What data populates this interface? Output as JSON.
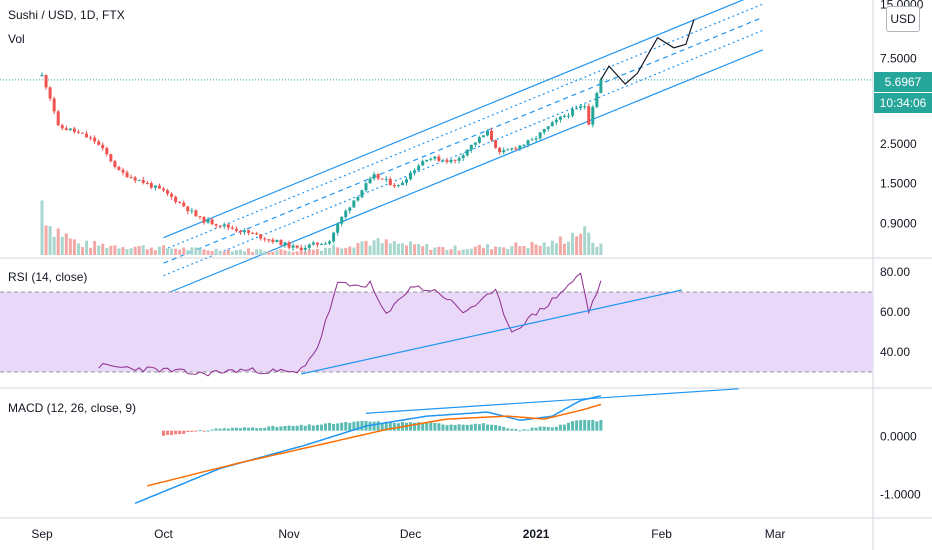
{
  "header": {
    "symbol_title": "Sushi / USD, 1D, FTX",
    "volume_label": "Vol",
    "currency_button": "USD"
  },
  "price_tags": {
    "last_price": "5.6967",
    "countdown": "10:34:06",
    "last_price_color": "#26a69a",
    "countdown_color": "#26a69a"
  },
  "panes": {
    "rsi_title": "RSI (14, close)",
    "macd_title": "MACD (12, 26, close, 9)"
  },
  "colors": {
    "up": "#26a69a",
    "down": "#ef5350",
    "up_volume": "#a7d6cf",
    "down_volume": "#f3a8a6",
    "rsi_line": "#8e2c8e",
    "rsi_band": "#e9d8f7",
    "trendline": "#2196f3",
    "macd_line": "#2196f3",
    "signal_line": "#ff6d00",
    "axis_text": "#131722"
  },
  "chart_data": [
    {
      "type": "candlestick",
      "title": "Sushi / USD, 1D, FTX",
      "scale": "log",
      "x_tick_labels": [
        "Sep",
        "Oct",
        "Nov",
        "Dec",
        "2021",
        "Feb",
        "Mar"
      ],
      "x_tick_dates": [
        "2020-09-01",
        "2020-10-01",
        "2020-11-01",
        "2020-12-01",
        "2021-01-01",
        "2021-02-01",
        "2021-03-01"
      ],
      "y_tick_labels": [
        "15.0000",
        "7.5000",
        "2.5000",
        "1.5000",
        "0.9000"
      ],
      "ylim": [
        0.6,
        15.5
      ],
      "current_price": 5.6967,
      "trend_channel": "ascending, upper band, lower band and median lines",
      "projection": "hand-drawn path above the last candle",
      "anchors": [
        {
          "date": "2020-09-01",
          "close": 6.0
        },
        {
          "date": "2020-09-02",
          "close": 5.3
        },
        {
          "date": "2020-09-05",
          "close": 3.1
        },
        {
          "date": "2020-09-08",
          "close": 3.0
        },
        {
          "date": "2020-09-14",
          "close": 2.6
        },
        {
          "date": "2020-09-20",
          "close": 1.75
        },
        {
          "date": "2020-10-01",
          "close": 1.35
        },
        {
          "date": "2020-10-10",
          "close": 0.95
        },
        {
          "date": "2020-10-20",
          "close": 0.82
        },
        {
          "date": "2020-11-03",
          "close": 0.65
        },
        {
          "date": "2020-11-11",
          "close": 0.72
        },
        {
          "date": "2020-11-18",
          "close": 1.3
        },
        {
          "date": "2020-11-22",
          "close": 1.65
        },
        {
          "date": "2020-11-28",
          "close": 1.45
        },
        {
          "date": "2020-12-05",
          "close": 2.1
        },
        {
          "date": "2020-12-12",
          "close": 2.0
        },
        {
          "date": "2020-12-20",
          "close": 2.9
        },
        {
          "date": "2020-12-23",
          "close": 2.2
        },
        {
          "date": "2020-12-31",
          "close": 2.6
        },
        {
          "date": "2021-01-08",
          "close": 3.6
        },
        {
          "date": "2021-01-13",
          "close": 4.1
        },
        {
          "date": "2021-01-14",
          "close": 3.3
        },
        {
          "date": "2021-01-17",
          "close": 5.6967
        }
      ]
    },
    {
      "type": "bar",
      "title": "Vol",
      "anchors": [
        {
          "date": "2020-09-01",
          "value": 1.0
        },
        {
          "date": "2020-09-03",
          "value": 0.55
        },
        {
          "date": "2020-09-10",
          "value": 0.2
        },
        {
          "date": "2020-10-10",
          "value": 0.1
        },
        {
          "date": "2020-11-05",
          "value": 0.08
        },
        {
          "date": "2020-11-20",
          "value": 0.25
        },
        {
          "date": "2020-12-10",
          "value": 0.12
        },
        {
          "date": "2021-01-05",
          "value": 0.2
        },
        {
          "date": "2021-01-12",
          "value": 0.45
        },
        {
          "date": "2021-01-17",
          "value": 0.15
        }
      ]
    },
    {
      "type": "line",
      "title": "RSI (14, close)",
      "y_tick_labels": [
        "80.00",
        "60.00",
        "40.00"
      ],
      "ylim": [
        25,
        85
      ],
      "bands": [
        30,
        70
      ],
      "anchors": [
        {
          "date": "2020-09-15",
          "value": 33
        },
        {
          "date": "2020-10-01",
          "value": 31
        },
        {
          "date": "2020-10-10",
          "value": 29
        },
        {
          "date": "2020-10-20",
          "value": 31
        },
        {
          "date": "2020-11-01",
          "value": 30
        },
        {
          "date": "2020-11-03",
          "value": 29
        },
        {
          "date": "2020-11-08",
          "value": 42
        },
        {
          "date": "2020-11-13",
          "value": 74
        },
        {
          "date": "2020-11-17",
          "value": 73
        },
        {
          "date": "2020-11-21",
          "value": 74
        },
        {
          "date": "2020-11-25",
          "value": 58
        },
        {
          "date": "2020-12-01",
          "value": 73
        },
        {
          "date": "2020-12-08",
          "value": 70
        },
        {
          "date": "2020-12-14",
          "value": 60
        },
        {
          "date": "2020-12-22",
          "value": 70
        },
        {
          "date": "2020-12-26",
          "value": 50
        },
        {
          "date": "2021-01-04",
          "value": 64
        },
        {
          "date": "2021-01-12",
          "value": 79
        },
        {
          "date": "2021-01-14",
          "value": 60
        },
        {
          "date": "2021-01-17",
          "value": 75
        }
      ]
    },
    {
      "type": "line",
      "title": "MACD (12, 26, close, 9)",
      "y_tick_labels": [
        "0.0000",
        "-1.0000"
      ],
      "ylim": [
        -1.3,
        0.8
      ],
      "series": [
        {
          "anchors": [
            {
              "date": "2020-09-24",
              "value": -1.15
            },
            {
              "date": "2020-10-15",
              "value": -0.55
            },
            {
              "date": "2020-11-05",
              "value": -0.15
            },
            {
              "date": "2020-11-20",
              "value": 0.18
            },
            {
              "date": "2020-12-05",
              "value": 0.35
            },
            {
              "date": "2020-12-20",
              "value": 0.42
            },
            {
              "date": "2020-12-28",
              "value": 0.28
            },
            {
              "date": "2021-01-05",
              "value": 0.35
            },
            {
              "date": "2021-01-12",
              "value": 0.62
            },
            {
              "date": "2021-01-17",
              "value": 0.7
            }
          ]
        },
        {
          "anchors": [
            {
              "date": "2020-09-27",
              "value": -0.85
            },
            {
              "date": "2020-10-20",
              "value": -0.45
            },
            {
              "date": "2020-11-10",
              "value": -0.12
            },
            {
              "date": "2020-11-25",
              "value": 0.12
            },
            {
              "date": "2020-12-10",
              "value": 0.3
            },
            {
              "date": "2020-12-25",
              "value": 0.35
            },
            {
              "date": "2021-01-03",
              "value": 0.3
            },
            {
              "date": "2021-01-12",
              "value": 0.45
            },
            {
              "date": "2021-01-17",
              "value": 0.55
            }
          ]
        }
      ]
    }
  ]
}
